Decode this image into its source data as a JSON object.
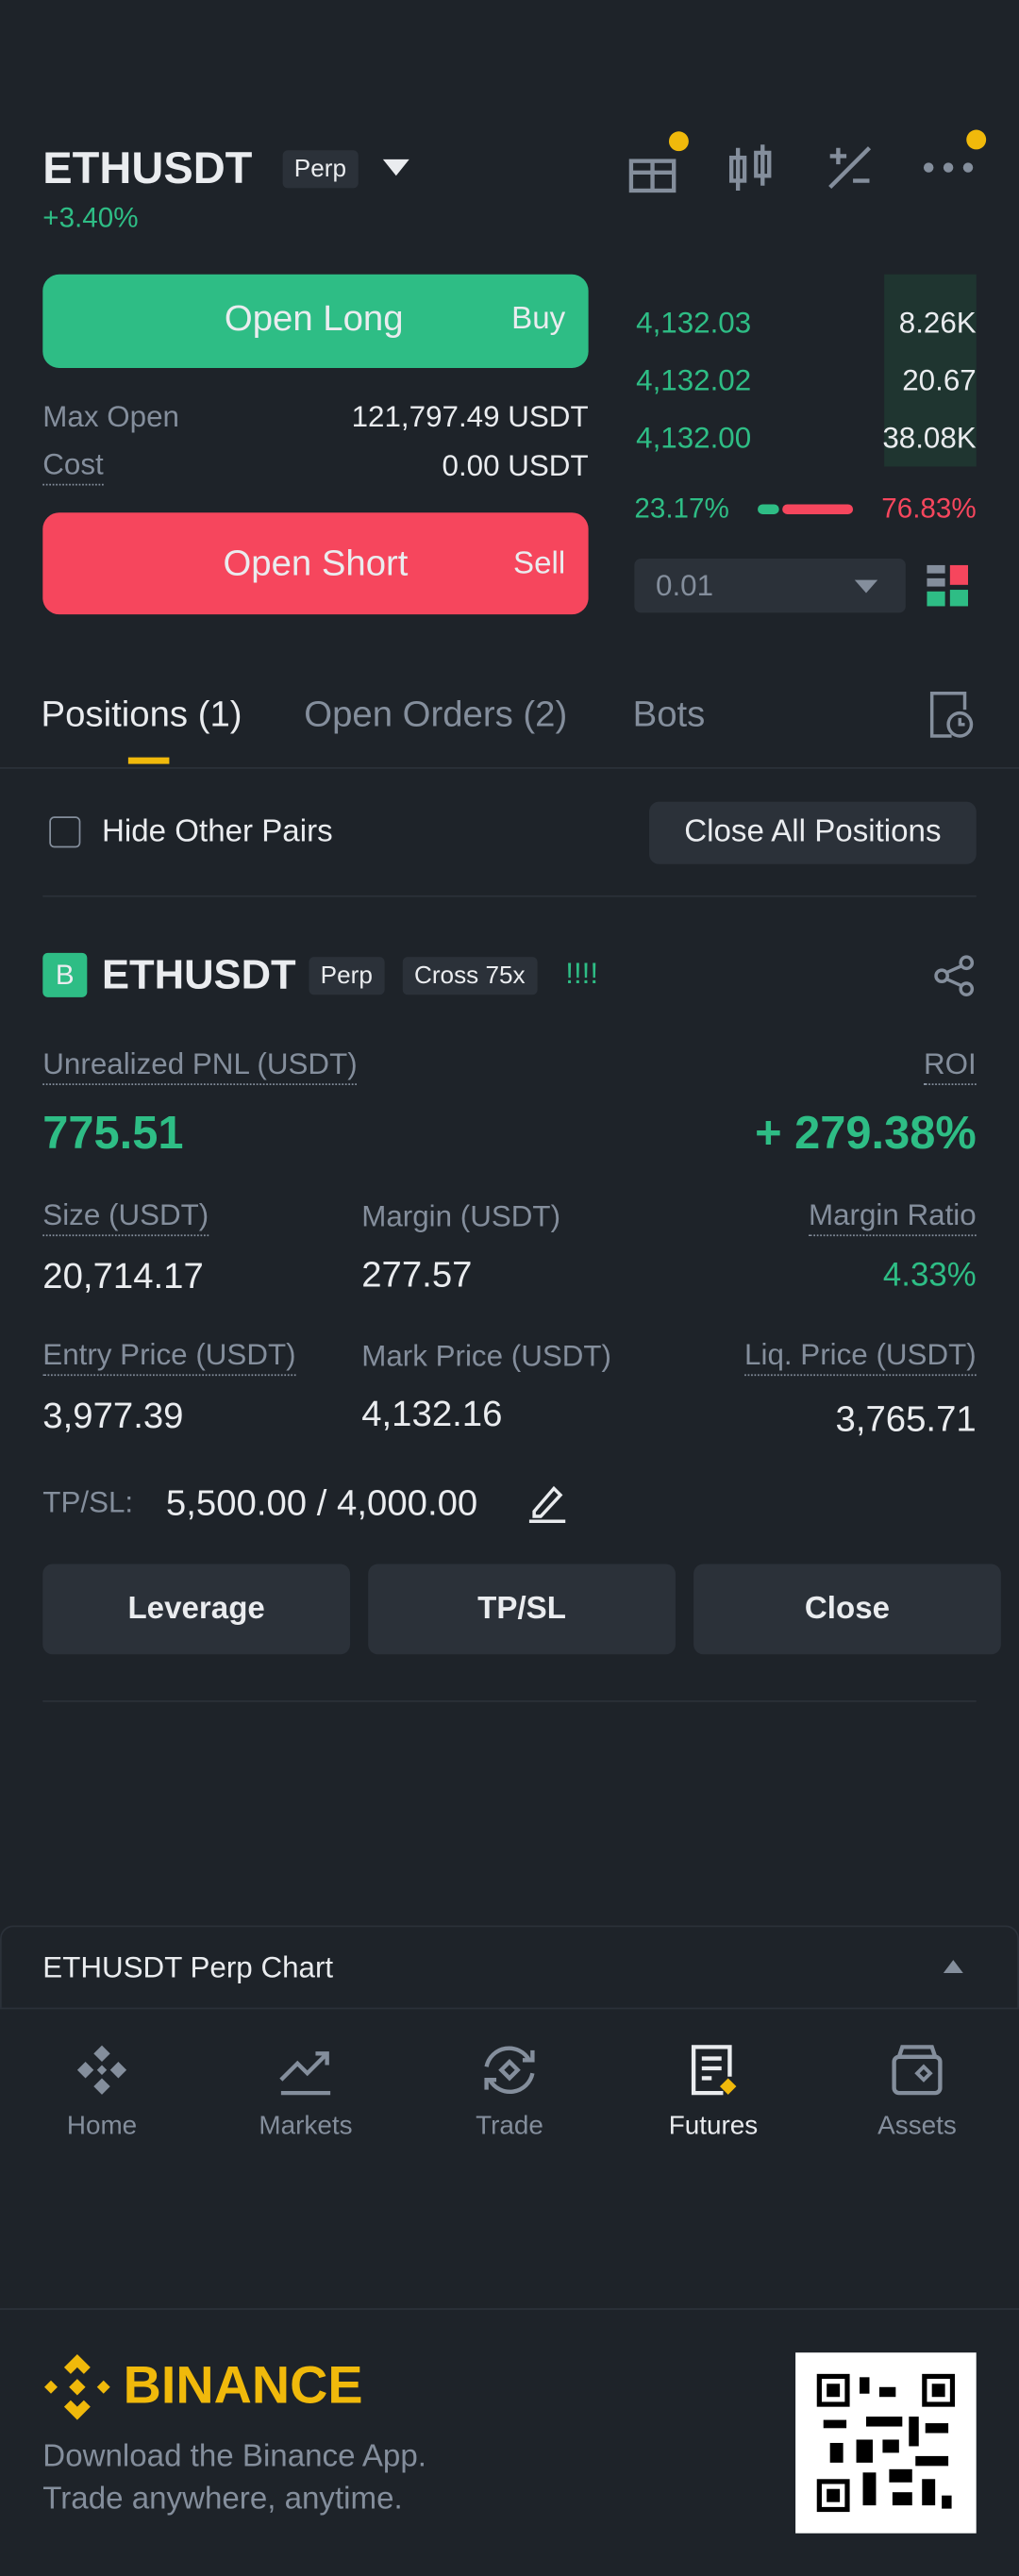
{
  "header": {
    "symbol": "ETHUSDT",
    "tag": "Perp",
    "change": "+3.40%"
  },
  "trade": {
    "open_long": "Open Long",
    "buy": "Buy",
    "max_open_label": "Max Open",
    "max_open_value": "121,797.49 USDT",
    "cost_label": "Cost",
    "cost_value": "0.00 USDT",
    "open_short": "Open Short",
    "sell": "Sell"
  },
  "orderbook": {
    "rows": [
      [
        "4,132.03",
        "8.26K"
      ],
      [
        "4,132.02",
        "20.67"
      ],
      [
        "4,132.00",
        "38.08K"
      ]
    ],
    "buy_ratio": "23.17%",
    "sell_ratio": "76.83%",
    "buy_pct": 23.17,
    "sell_pct": 76.83,
    "quantity": "0.01"
  },
  "tabs": [
    "Positions (1)",
    "Open Orders (2)",
    "Bots"
  ],
  "filters": {
    "hide_other_pairs": "Hide Other Pairs",
    "close_all": "Close All Positions"
  },
  "position": {
    "badge": "B",
    "symbol": "ETHUSDT",
    "tag": "Perp",
    "margin_mode": "Cross 75x",
    "strength": "!!!!",
    "pnl_label": "Unrealized PNL (USDT)",
    "roi_label": "ROI",
    "pnl": "775.51",
    "roi": "+ 279.38%",
    "fields": [
      {
        "label": "Size (USDT)",
        "value": "20,714.17"
      },
      {
        "label": "Margin (USDT)",
        "value": "277.57"
      },
      {
        "label": "Margin Ratio",
        "value": "4.33%"
      },
      {
        "label": "Entry Price (USDT)",
        "value": "3,977.39"
      },
      {
        "label": "Mark Price (USDT)",
        "value": "4,132.16"
      },
      {
        "label": "Liq. Price (USDT)",
        "value": "3,765.71"
      }
    ],
    "tpsl_label": "TP/SL:",
    "tpsl_value": "5,500.00 / 4,000.00",
    "buttons": [
      "Leverage",
      "TP/SL",
      "Close"
    ]
  },
  "chart_bar": "ETHUSDT Perp Chart",
  "nav": [
    "Home",
    "Markets",
    "Trade",
    "Futures",
    "Assets"
  ],
  "footer": {
    "brand": "BINANCE",
    "line1": "Download the Binance App.",
    "line2": "Trade anywhere, anytime."
  }
}
